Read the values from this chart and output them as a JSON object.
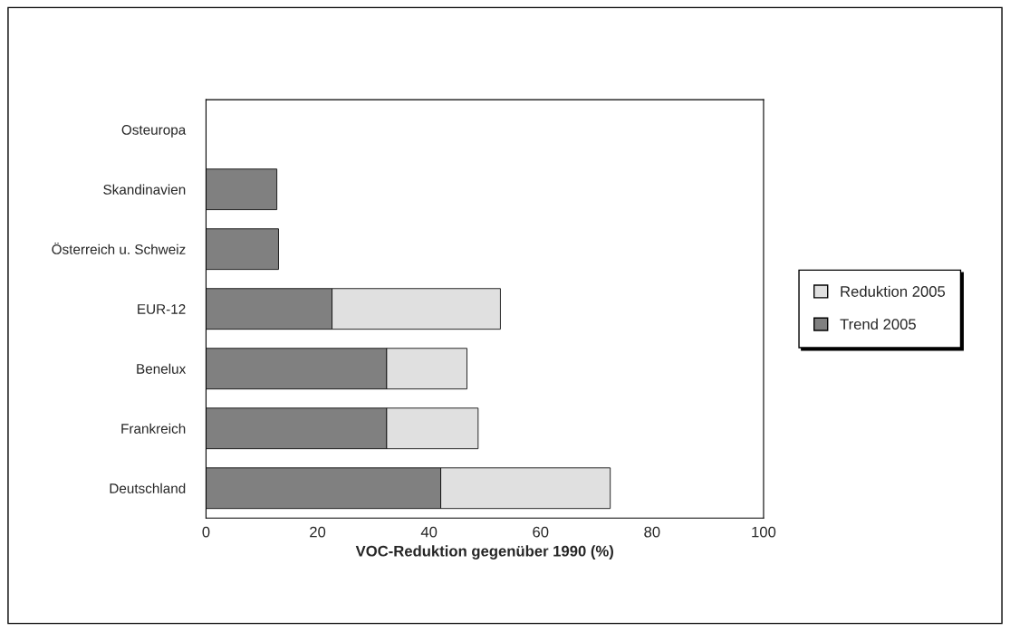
{
  "chart_data": {
    "type": "bar",
    "orientation": "horizontal",
    "stacked": true,
    "categories": [
      "Osteuropa",
      "Skandinavien",
      "Österreich u. Schweiz",
      "EUR-12",
      "Benelux",
      "Frankreich",
      "Deutschland"
    ],
    "series": [
      {
        "name": "Trend 2005",
        "color": "#808080",
        "values": [
          null,
          12.7,
          13.0,
          22.6,
          32.4,
          32.4,
          42.1
        ]
      },
      {
        "name": "Reduktion 2005",
        "color": "#e0e0e0",
        "values": [
          null,
          null,
          null,
          30.2,
          14.4,
          16.4,
          30.4
        ]
      }
    ],
    "xlabel": "VOC-Reduktion gegenüber 1990 (%)",
    "xlim": [
      0,
      100
    ],
    "xticks": [
      0,
      20,
      40,
      60,
      80,
      100
    ],
    "grid": false,
    "legend": "right"
  }
}
